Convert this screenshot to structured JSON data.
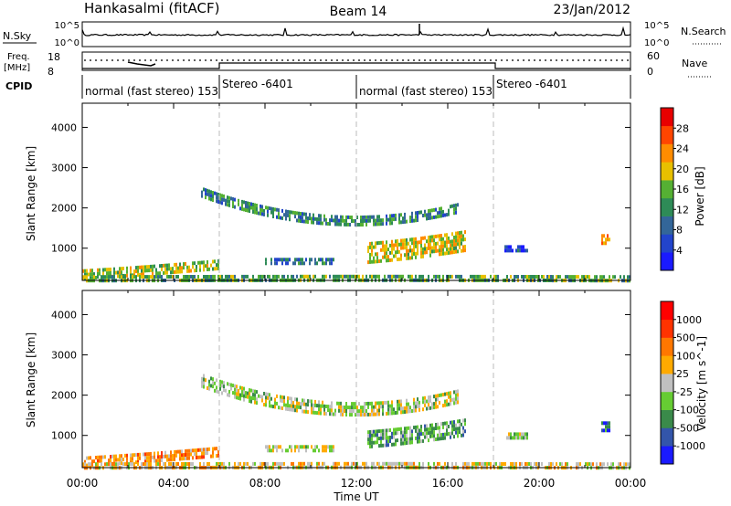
{
  "header": {
    "station": "Hankasalmi (fitACF)",
    "beam": "Beam 14",
    "date": "23/Jan/2012"
  },
  "panels": {
    "nsky_label": "N.Sky",
    "nsky_ticks": [
      "10^5",
      "10^0"
    ],
    "nsearch_label": "N.Search",
    "nsearch_ticks": [
      "10^5",
      "10^0"
    ],
    "freq_label_1": "Freq.",
    "freq_label_2": "[MHz]",
    "freq_ticks": [
      "18",
      "8"
    ],
    "nave_label": "Nave",
    "nave_ticks": [
      "60",
      "0"
    ],
    "cpid_label": "CPID",
    "cpid_segments": [
      {
        "name": "normal (fast stereo) 153",
        "start_h": 0,
        "end_h": 6
      },
      {
        "name": "Stereo -6401",
        "start_h": 6,
        "end_h": 12
      },
      {
        "name": "normal (fast stereo) 153",
        "start_h": 12,
        "end_h": 18
      },
      {
        "name": "Stereo -6401",
        "start_h": 18,
        "end_h": 24
      }
    ]
  },
  "colors": {
    "power_scale": [
      "#1a1aff",
      "#2244cc",
      "#336699",
      "#2e8b57",
      "#55b033",
      "#e8c000",
      "#ff8c00",
      "#ff4500",
      "#e80000"
    ],
    "velocity_scale": [
      "#1a1aff",
      "#3355aa",
      "#3a8a4a",
      "#66cc33",
      "#c0c0c0",
      "#ffaa00",
      "#ff7700",
      "#ff3300",
      "#ff0000"
    ]
  },
  "chart_data": [
    {
      "type": "heatmap",
      "name": "power",
      "xlabel": "Time UT",
      "ylabel": "Slant Range [km]",
      "xlim": [
        0,
        24
      ],
      "ylim": [
        200,
        4600
      ],
      "x_ticks": [
        "00:00",
        "04:00",
        "08:00",
        "12:00",
        "16:00",
        "20:00",
        "00:00"
      ],
      "y_ticks": [
        1000,
        2000,
        3000,
        4000
      ],
      "colorbar_label": "Power [dB]",
      "colorbar_ticks": [
        "28",
        "24",
        "20",
        "16",
        "12",
        "8",
        "4"
      ],
      "regions": [
        {
          "t0": 5.2,
          "t1": 16.5,
          "r_start": 2400,
          "r_mid": 1200,
          "r_end": 2000,
          "width": 260,
          "level": 0.35
        },
        {
          "t0": 12.5,
          "t1": 16.8,
          "r_start": 900,
          "r_mid": 1000,
          "r_end": 1200,
          "width": 500,
          "level": 0.6
        },
        {
          "t0": 0.0,
          "t1": 6.0,
          "r_start": 350,
          "r_mid": 450,
          "r_end": 600,
          "width": 250,
          "level": 0.55
        },
        {
          "t0": 8.0,
          "t1": 11.0,
          "r_start": 700,
          "r_mid": 700,
          "r_end": 700,
          "width": 120,
          "level": 0.3
        },
        {
          "t0": 0.0,
          "t1": 24.0,
          "r_start": 280,
          "r_mid": 300,
          "r_end": 280,
          "width": 100,
          "level": 0.45
        },
        {
          "t0": 18.5,
          "t1": 19.5,
          "r_start": 1000,
          "r_mid": 1000,
          "r_end": 1000,
          "width": 150,
          "level": 0.2
        },
        {
          "t0": 22.7,
          "t1": 23.1,
          "r_start": 1250,
          "r_mid": 1250,
          "r_end": 1250,
          "width": 200,
          "level": 0.7
        }
      ]
    },
    {
      "type": "heatmap",
      "name": "velocity",
      "xlabel": "Time UT",
      "ylabel": "Slant Range [km]",
      "xlim": [
        0,
        24
      ],
      "ylim": [
        200,
        4600
      ],
      "x_ticks": [
        "00:00",
        "04:00",
        "08:00",
        "12:00",
        "16:00",
        "20:00",
        "00:00"
      ],
      "y_ticks": [
        1000,
        2000,
        3000,
        4000
      ],
      "colorbar_label": "Velocity [m s^-1]",
      "colorbar_ticks": [
        "1000",
        "500",
        "100",
        "25",
        "-25",
        "-100",
        "-500",
        "-1000"
      ],
      "regions": [
        {
          "t0": 5.2,
          "t1": 16.5,
          "r_start": 2400,
          "r_mid": 1200,
          "r_end": 2000,
          "width": 300,
          "level": 0.45
        },
        {
          "t0": 12.5,
          "t1": 16.8,
          "r_start": 900,
          "r_mid": 1000,
          "r_end": 1200,
          "width": 450,
          "level": 0.35
        },
        {
          "t0": 0.0,
          "t1": 6.0,
          "r_start": 350,
          "r_mid": 450,
          "r_end": 600,
          "width": 250,
          "level": 0.65
        },
        {
          "t0": 8.0,
          "t1": 11.0,
          "r_start": 700,
          "r_mid": 700,
          "r_end": 700,
          "width": 120,
          "level": 0.45
        },
        {
          "t0": 0.0,
          "t1": 24.0,
          "r_start": 280,
          "r_mid": 300,
          "r_end": 280,
          "width": 100,
          "level": 0.55
        },
        {
          "t0": 18.5,
          "t1": 19.5,
          "r_start": 1000,
          "r_mid": 1000,
          "r_end": 1000,
          "width": 150,
          "level": 0.45
        },
        {
          "t0": 22.7,
          "t1": 23.1,
          "r_start": 1250,
          "r_mid": 1250,
          "r_end": 1250,
          "width": 200,
          "level": 0.2
        }
      ]
    }
  ]
}
